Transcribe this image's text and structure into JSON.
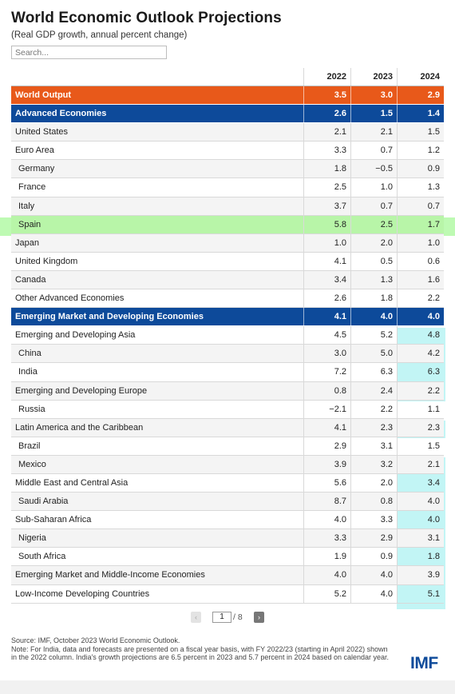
{
  "title": "World Economic Outlook Projections",
  "subtitle": "(Real GDP growth, annual percent change)",
  "search": {
    "placeholder": "Search..."
  },
  "columns": [
    "2022",
    "2023",
    "2024"
  ],
  "rows": [
    {
      "label": "World Output",
      "values": [
        "3.5",
        "3.0",
        "2.9"
      ],
      "style": "world"
    },
    {
      "label": "Advanced Economies",
      "values": [
        "2.6",
        "1.5",
        "1.4"
      ],
      "style": "blue"
    },
    {
      "label": "United States",
      "values": [
        "2.1",
        "2.1",
        "1.5"
      ],
      "style": "alt"
    },
    {
      "label": "Euro Area",
      "values": [
        "3.3",
        "0.7",
        "1.2"
      ],
      "style": ""
    },
    {
      "label": "Germany",
      "values": [
        "1.8",
        "−0.5",
        "0.9"
      ],
      "style": "alt indent"
    },
    {
      "label": "France",
      "values": [
        "2.5",
        "1.0",
        "1.3"
      ],
      "style": "indent"
    },
    {
      "label": "Italy",
      "values": [
        "3.7",
        "0.7",
        "0.7"
      ],
      "style": "alt indent"
    },
    {
      "label": "Spain",
      "values": [
        "5.8",
        "2.5",
        "1.7"
      ],
      "style": "indent green"
    },
    {
      "label": "Japan",
      "values": [
        "1.0",
        "2.0",
        "1.0"
      ],
      "style": "alt"
    },
    {
      "label": "United Kingdom",
      "values": [
        "4.1",
        "0.5",
        "0.6"
      ],
      "style": ""
    },
    {
      "label": "Canada",
      "values": [
        "3.4",
        "1.3",
        "1.6"
      ],
      "style": "alt"
    },
    {
      "label": "Other Advanced Economies",
      "values": [
        "2.6",
        "1.8",
        "2.2"
      ],
      "style": ""
    },
    {
      "label": "Emerging Market and Developing Economies",
      "values": [
        "4.1",
        "4.0",
        "4.0"
      ],
      "style": "blue"
    },
    {
      "label": "Emerging and Developing Asia",
      "values": [
        "4.5",
        "5.2",
        "4.8"
      ],
      "style": ""
    },
    {
      "label": "China",
      "values": [
        "3.0",
        "5.0",
        "4.2"
      ],
      "style": "alt indent"
    },
    {
      "label": "India",
      "values": [
        "7.2",
        "6.3",
        "6.3"
      ],
      "style": "indent"
    },
    {
      "label": "Emerging and Developing Europe",
      "values": [
        "0.8",
        "2.4",
        "2.2"
      ],
      "style": "alt"
    },
    {
      "label": "Russia",
      "values": [
        "−2.1",
        "2.2",
        "1.1"
      ],
      "style": "indent"
    },
    {
      "label": "Latin America and the Caribbean",
      "values": [
        "4.1",
        "2.3",
        "2.3"
      ],
      "style": "alt"
    },
    {
      "label": "Brazil",
      "values": [
        "2.9",
        "3.1",
        "1.5"
      ],
      "style": "indent"
    },
    {
      "label": "Mexico",
      "values": [
        "3.9",
        "3.2",
        "2.1"
      ],
      "style": "alt indent"
    },
    {
      "label": "Middle East and Central Asia",
      "values": [
        "5.6",
        "2.0",
        "3.4"
      ],
      "style": ""
    },
    {
      "label": "Saudi Arabia",
      "values": [
        "8.7",
        "0.8",
        "4.0"
      ],
      "style": "alt indent"
    },
    {
      "label": "Sub-Saharan Africa",
      "values": [
        "4.0",
        "3.3",
        "4.0"
      ],
      "style": ""
    },
    {
      "label": "Nigeria",
      "values": [
        "3.3",
        "2.9",
        "3.1"
      ],
      "style": "alt indent"
    },
    {
      "label": "South Africa",
      "values": [
        "1.9",
        "0.9",
        "1.8"
      ],
      "style": "indent"
    },
    {
      "label": "Emerging Market and Middle-Income Economies",
      "values": [
        "4.0",
        "4.0",
        "3.9"
      ],
      "style": "alt"
    },
    {
      "label": "Low-Income Developing Countries",
      "values": [
        "5.2",
        "4.0",
        "5.1"
      ],
      "style": ""
    }
  ],
  "pagination": {
    "prev": "‹",
    "current": "1",
    "total": "/ 8",
    "next": "›"
  },
  "footer": {
    "source": "Source: IMF, October 2023 World Economic Outlook.",
    "note": "Note: For India, data and forecasts are presented on a fiscal year basis, with FY 2022/23 (starting in April 2022) shown in the 2022 column. India's growth projections are 6.5 percent in 2023 and 5.7 percent in 2024 based on calendar year."
  },
  "logo": "IMF",
  "colors": {
    "world": "#e8591a",
    "group": "#0d4a9a",
    "highlight_green": "#a8f89a",
    "highlight_cyan": "#aef2f2"
  }
}
